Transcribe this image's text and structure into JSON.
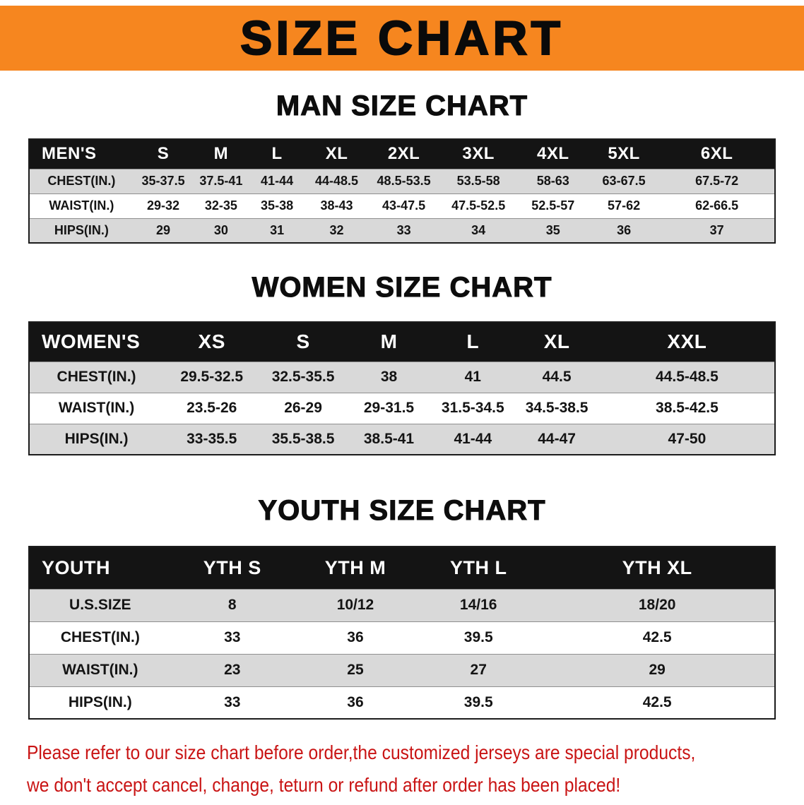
{
  "banner": {
    "title": "SIZE CHART",
    "bg_color": "#F6861F"
  },
  "colors": {
    "table_header_bg": "#141414",
    "row_alt": "#d9d9d9",
    "disclaimer_red": "#c91414"
  },
  "sections": [
    {
      "id": "men",
      "heading": "MAN SIZE CHART",
      "table": {
        "header": [
          "MEN'S",
          "S",
          "M",
          "L",
          "XL",
          "2XL",
          "3XL",
          "4XL",
          "5XL",
          "6XL"
        ],
        "rows": [
          [
            "CHEST(IN.)",
            "35-37.5",
            "37.5-41",
            "41-44",
            "44-48.5",
            "48.5-53.5",
            "53.5-58",
            "58-63",
            "63-67.5",
            "67.5-72"
          ],
          [
            "WAIST(IN.)",
            "29-32",
            "32-35",
            "35-38",
            "38-43",
            "43-47.5",
            "47.5-52.5",
            "52.5-57",
            "57-62",
            "62-66.5"
          ],
          [
            "HIPS(IN.)",
            "29",
            "30",
            "31",
            "32",
            "33",
            "34",
            "35",
            "36",
            "37"
          ]
        ]
      }
    },
    {
      "id": "women",
      "heading": "WOMEN SIZE CHART",
      "table": {
        "header": [
          "WOMEN'S",
          "XS",
          "S",
          "M",
          "L",
          "XL",
          "XXL"
        ],
        "rows": [
          [
            "CHEST(IN.)",
            "29.5-32.5",
            "32.5-35.5",
            "38",
            "41",
            "44.5",
            "44.5-48.5"
          ],
          [
            "WAIST(IN.)",
            "23.5-26",
            "26-29",
            "29-31.5",
            "31.5-34.5",
            "34.5-38.5",
            "38.5-42.5"
          ],
          [
            "HIPS(IN.)",
            "33-35.5",
            "35.5-38.5",
            "38.5-41",
            "41-44",
            "44-47",
            "47-50"
          ]
        ]
      }
    },
    {
      "id": "youth",
      "heading": "YOUTH SIZE CHART",
      "table": {
        "header": [
          "YOUTH",
          "YTH S",
          "YTH M",
          "YTH L",
          "YTH XL"
        ],
        "rows": [
          [
            "U.S.SIZE",
            "8",
            "10/12",
            "14/16",
            "18/20"
          ],
          [
            "CHEST(IN.)",
            "33",
            "36",
            "39.5",
            "42.5"
          ],
          [
            "WAIST(IN.)",
            "23",
            "25",
            "27",
            "29"
          ],
          [
            "HIPS(IN.)",
            "33",
            "36",
            "39.5",
            "42.5"
          ]
        ]
      }
    }
  ],
  "disclaimer": {
    "line1": "Please refer to our size chart before order,the customized jerseys are special products,",
    "line2": "we don't accept cancel, change, teturn or refund after order has been placed!"
  }
}
